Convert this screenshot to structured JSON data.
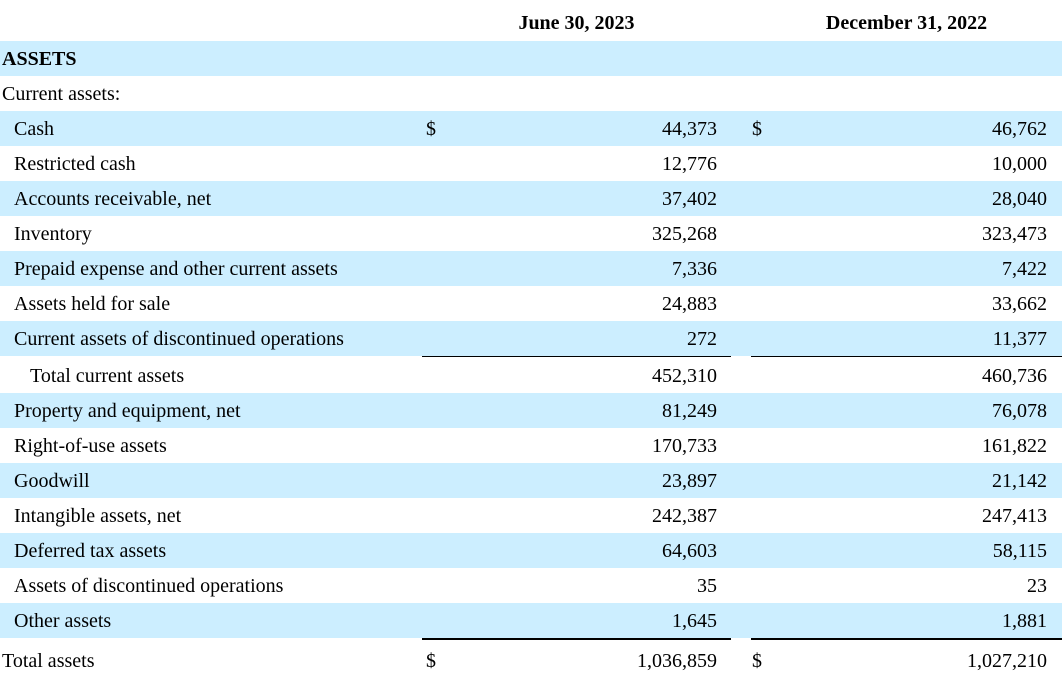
{
  "headers": {
    "col1": "June 30, 2023",
    "col2": "December 31, 2022"
  },
  "section_title": "ASSETS",
  "subsection_title": "Current assets:",
  "currency_symbol": "$",
  "rows": [
    {
      "label": "Cash",
      "col1": "44,373",
      "col2": "46,762"
    },
    {
      "label": "Restricted cash",
      "col1": "12,776",
      "col2": "10,000"
    },
    {
      "label": "Accounts receivable, net",
      "col1": "37,402",
      "col2": "28,040"
    },
    {
      "label": "Inventory",
      "col1": "325,268",
      "col2": "323,473"
    },
    {
      "label": "Prepaid expense and other current assets",
      "col1": "7,336",
      "col2": "7,422"
    },
    {
      "label": "Assets held for sale",
      "col1": "24,883",
      "col2": "33,662"
    },
    {
      "label": "Current assets of discontinued operations",
      "col1": "272",
      "col2": "11,377"
    },
    {
      "label": "Total current assets",
      "col1": "452,310",
      "col2": "460,736"
    },
    {
      "label": "Property and equipment, net",
      "col1": "81,249",
      "col2": "76,078"
    },
    {
      "label": "Right-of-use assets",
      "col1": "170,733",
      "col2": "161,822"
    },
    {
      "label": "Goodwill",
      "col1": "23,897",
      "col2": "21,142"
    },
    {
      "label": "Intangible assets, net",
      "col1": "242,387",
      "col2": "247,413"
    },
    {
      "label": "Deferred tax assets",
      "col1": "64,603",
      "col2": "58,115"
    },
    {
      "label": "Assets of discontinued operations",
      "col1": "35",
      "col2": "23"
    },
    {
      "label": "Other assets",
      "col1": "1,645",
      "col2": "1,881"
    },
    {
      "label": "Total assets",
      "col1": "1,036,859",
      "col2": "1,027,210"
    }
  ]
}
